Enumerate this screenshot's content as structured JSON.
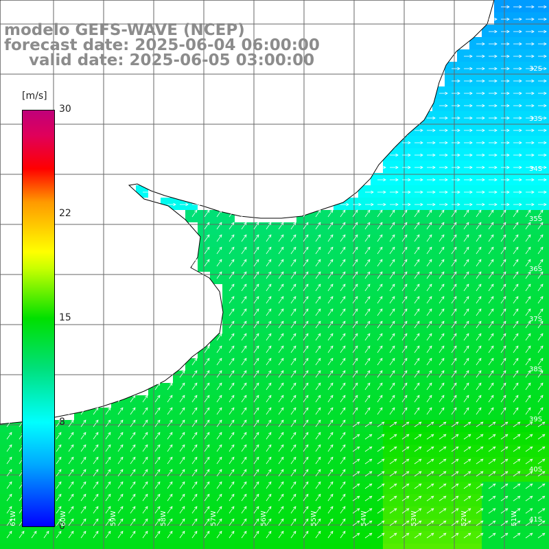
{
  "title": {
    "line1": "modelo GEFS-WAVE (NCEP)",
    "line2": "forecast date: 2025-06-04 06:00:00",
    "line3": "valid date: 2025-06-05 03:00:00"
  },
  "colorbar": {
    "unit": "[m/s]",
    "ticks": [
      "30",
      "22",
      "15",
      "8",
      "0"
    ],
    "tick_values": [
      30,
      22,
      15,
      8,
      0
    ]
  },
  "lat_labels": [
    "32S",
    "33S",
    "34S",
    "35S",
    "36S",
    "37S",
    "38S",
    "39S",
    "40S",
    "41S"
  ],
  "lon_labels": [
    "61W",
    "60W",
    "59W",
    "58W",
    "57W",
    "56W",
    "55W",
    "54W",
    "53W",
    "52W",
    "51W"
  ],
  "colors": {
    "land": "#ffffff",
    "coast": "#000000",
    "grid": "#666666",
    "arrow": "#ffffff",
    "title": "#8c8c8c"
  }
}
